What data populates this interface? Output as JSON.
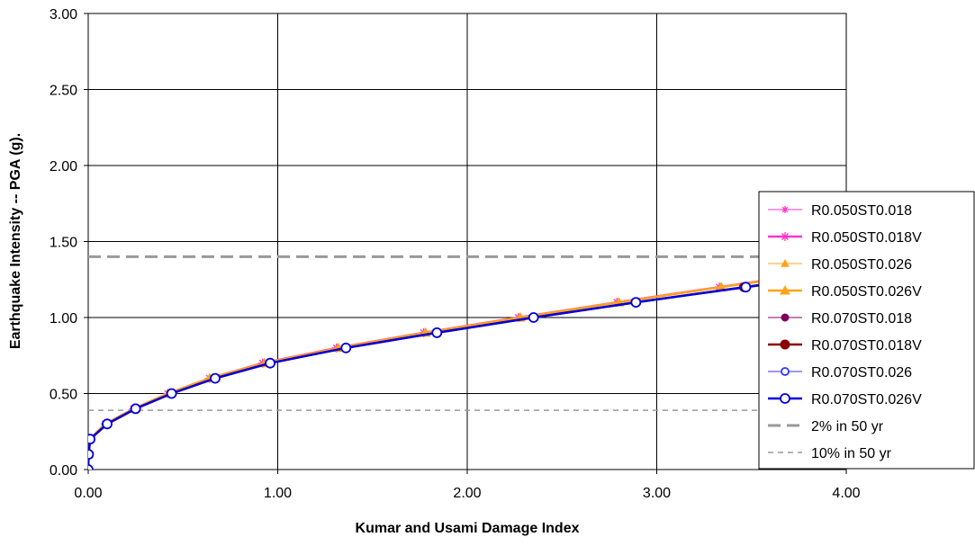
{
  "chart_data": {
    "type": "line",
    "title": "",
    "xlabel": "Kumar and Usami Damage Index",
    "ylabel": "Earthquake Intensity -- PGA (g).",
    "xlim": [
      0,
      4
    ],
    "ylim": [
      0,
      3
    ],
    "x_ticks": [
      "0.00",
      "1.00",
      "2.00",
      "3.00",
      "4.00"
    ],
    "y_ticks": [
      "0.00",
      "0.50",
      "1.00",
      "1.50",
      "2.00",
      "2.50",
      "3.00"
    ],
    "grid": true,
    "legend_position": "right",
    "y": [
      0.0,
      0.1,
      0.2,
      0.3,
      0.4,
      0.5,
      0.6,
      0.7,
      0.8,
      0.9,
      1.0,
      1.1,
      1.2,
      1.3
    ],
    "series": [
      {
        "name": "R0.050ST0.018",
        "color": "#ff33cc",
        "marker": "asterisk",
        "width": 1,
        "x": [
          0.0,
          0.002,
          0.008,
          0.09,
          0.24,
          0.42,
          0.64,
          0.92,
          1.31,
          1.77,
          2.27,
          2.79,
          3.33,
          3.88
        ]
      },
      {
        "name": "R0.050ST0.018V",
        "color": "#ff33cc",
        "marker": "asterisk",
        "width": 2.5,
        "x": [
          0.0,
          0.002,
          0.008,
          0.09,
          0.24,
          0.42,
          0.64,
          0.92,
          1.31,
          1.77,
          2.27,
          2.79,
          3.33,
          3.88
        ]
      },
      {
        "name": "R0.050ST0.026",
        "color": "#ffa31a",
        "marker": "triangle",
        "width": 1,
        "x": [
          0.0,
          0.002,
          0.008,
          0.09,
          0.24,
          0.42,
          0.64,
          0.93,
          1.32,
          1.78,
          2.28,
          2.8,
          3.34,
          3.89
        ]
      },
      {
        "name": "R0.050ST0.026V",
        "color": "#ffa31a",
        "marker": "triangle",
        "width": 2.5,
        "x": [
          0.0,
          0.002,
          0.008,
          0.09,
          0.24,
          0.42,
          0.64,
          0.93,
          1.32,
          1.78,
          2.28,
          2.8,
          3.34,
          3.89
        ]
      },
      {
        "name": "R0.070ST0.018",
        "color": "#800060",
        "marker": "circle",
        "width": 1,
        "x": [
          0.0,
          0.002,
          0.01,
          0.1,
          0.25,
          0.44,
          0.67,
          0.96,
          1.36,
          1.84,
          2.35,
          2.89,
          3.46,
          4.05
        ]
      },
      {
        "name": "R0.070ST0.018V",
        "color": "#8b0000",
        "marker": "circle",
        "width": 2.5,
        "x": [
          0.0,
          0.002,
          0.01,
          0.1,
          0.25,
          0.44,
          0.67,
          0.96,
          1.36,
          1.84,
          2.35,
          2.89,
          3.46,
          4.05
        ]
      },
      {
        "name": "R0.070ST0.026",
        "color": "#3333ff",
        "marker": "circle-open",
        "width": 1,
        "x": [
          0.0,
          0.002,
          0.01,
          0.1,
          0.25,
          0.44,
          0.67,
          0.96,
          1.36,
          1.84,
          2.35,
          2.89,
          3.47,
          4.06
        ]
      },
      {
        "name": "R0.070ST0.026V",
        "color": "#0000dd",
        "marker": "circle-open",
        "width": 2.5,
        "x": [
          0.0,
          0.002,
          0.01,
          0.1,
          0.25,
          0.44,
          0.67,
          0.96,
          1.36,
          1.84,
          2.35,
          2.89,
          3.47,
          4.06
        ]
      }
    ],
    "hlines": [
      {
        "name": "2% in 50 yr",
        "y": 1.4,
        "color": "#999999",
        "style": "long-dash"
      },
      {
        "name": "10% in 50 yr",
        "y": 0.39,
        "color": "#999999",
        "style": "short-dash"
      }
    ]
  }
}
